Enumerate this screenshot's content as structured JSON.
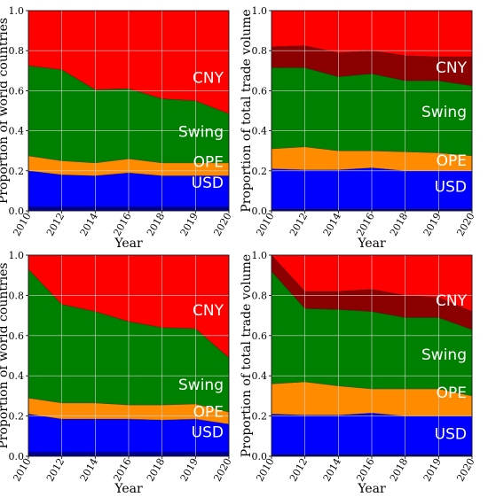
{
  "chart_data": [
    {
      "type": "area",
      "stacked": true,
      "x": [
        "2010",
        "2012",
        "2014",
        "2016",
        "2018",
        "2019",
        "2020"
      ],
      "xlabel": "Year",
      "ylabel": "Proportion of world countries",
      "ylim": [
        0,
        1
      ],
      "yticks": [
        "0.0",
        "0.2",
        "0.4",
        "0.6",
        "0.8",
        "1.0"
      ],
      "grid": true,
      "series": [
        {
          "name": "",
          "values": [
            0.02,
            0.02,
            0.02,
            0.02,
            0.02,
            0.02,
            0.02
          ]
        },
        {
          "name": "USD",
          "values": [
            0.18,
            0.16,
            0.155,
            0.17,
            0.155,
            0.155,
            0.155
          ]
        },
        {
          "name": "OPE",
          "values": [
            0.075,
            0.07,
            0.065,
            0.07,
            0.065,
            0.065,
            0.065
          ]
        },
        {
          "name": "Swing",
          "values": [
            0.45,
            0.455,
            0.365,
            0.35,
            0.32,
            0.31,
            0.245
          ]
        },
        {
          "name": "CNY",
          "values": [
            0.275,
            0.295,
            0.395,
            0.39,
            0.44,
            0.45,
            0.515
          ]
        }
      ]
    },
    {
      "type": "area",
      "stacked": true,
      "x": [
        "2010",
        "2012",
        "2014",
        "2016",
        "2018",
        "2019",
        "2020"
      ],
      "xlabel": "Year",
      "ylabel": "Proportion of total trade volume",
      "ylim": [
        0,
        1
      ],
      "yticks": [
        "0.0",
        "0.2",
        "0.4",
        "0.6",
        "0.8",
        "1.0"
      ],
      "grid": true,
      "series": [
        {
          "name": "",
          "values": [
            0.01,
            0.01,
            0.01,
            0.01,
            0.01,
            0.01,
            0.01
          ]
        },
        {
          "name": "USD",
          "values": [
            0.2,
            0.195,
            0.195,
            0.205,
            0.19,
            0.19,
            0.19
          ]
        },
        {
          "name": "OPE",
          "values": [
            0.1,
            0.115,
            0.095,
            0.085,
            0.095,
            0.09,
            0.075
          ]
        },
        {
          "name": "Swing",
          "values": [
            0.405,
            0.395,
            0.37,
            0.385,
            0.355,
            0.36,
            0.35
          ]
        },
        {
          "name": "",
          "values": [
            0.105,
            0.11,
            0.12,
            0.115,
            0.125,
            0.12,
            0.145
          ]
        },
        {
          "name": "CNY",
          "values": [
            0.18,
            0.175,
            0.21,
            0.2,
            0.225,
            0.23,
            0.23
          ]
        }
      ]
    },
    {
      "type": "area",
      "stacked": true,
      "x": [
        "2010",
        "2012",
        "2014",
        "2016",
        "2018",
        "2019",
        "2020"
      ],
      "xlabel": "Year",
      "ylabel": "Proportion of world countries",
      "ylim": [
        0,
        1
      ],
      "yticks": [
        "0.0",
        "0.2",
        "0.4",
        "0.6",
        "0.8",
        "1.0"
      ],
      "grid": true,
      "series": [
        {
          "name": "",
          "values": [
            0.02,
            0.02,
            0.02,
            0.02,
            0.02,
            0.02,
            0.02
          ]
        },
        {
          "name": "USD",
          "values": [
            0.19,
            0.165,
            0.165,
            0.165,
            0.16,
            0.165,
            0.14
          ]
        },
        {
          "name": "OPE",
          "values": [
            0.08,
            0.08,
            0.08,
            0.07,
            0.075,
            0.075,
            0.06
          ]
        },
        {
          "name": "Swing",
          "values": [
            0.64,
            0.49,
            0.455,
            0.415,
            0.385,
            0.375,
            0.27
          ]
        },
        {
          "name": "CNY",
          "values": [
            0.07,
            0.245,
            0.28,
            0.33,
            0.36,
            0.365,
            0.51
          ]
        }
      ]
    },
    {
      "type": "area",
      "stacked": true,
      "x": [
        "2010",
        "2012",
        "2014",
        "2016",
        "2018",
        "2019",
        "2020"
      ],
      "xlabel": "Year",
      "ylabel": "Proportion of total trade volume",
      "ylim": [
        0,
        1
      ],
      "yticks": [
        "0.0",
        "0.2",
        "0.4",
        "0.6",
        "0.8",
        "1.0"
      ],
      "grid": true,
      "series": [
        {
          "name": "",
          "values": [
            0.01,
            0.01,
            0.01,
            0.01,
            0.01,
            0.01,
            0.01
          ]
        },
        {
          "name": "USD",
          "values": [
            0.2,
            0.195,
            0.195,
            0.205,
            0.19,
            0.19,
            0.19
          ]
        },
        {
          "name": "OPE",
          "values": [
            0.15,
            0.165,
            0.145,
            0.12,
            0.135,
            0.135,
            0.1
          ]
        },
        {
          "name": "Swing",
          "values": [
            0.56,
            0.365,
            0.38,
            0.385,
            0.355,
            0.355,
            0.33
          ]
        },
        {
          "name": "",
          "values": [
            0.08,
            0.085,
            0.09,
            0.11,
            0.11,
            0.1,
            0.09
          ]
        },
        {
          "name": "CNY",
          "values": [
            0.0,
            0.18,
            0.18,
            0.17,
            0.2,
            0.21,
            0.28
          ]
        }
      ]
    }
  ],
  "colors": {
    "navy": "#00008B",
    "blue": "#0000FF",
    "orange": "#FF8C00",
    "green": "#008000",
    "darkred": "#8B0000",
    "red": "#FF0000",
    "grid": "#D3D3D3"
  }
}
